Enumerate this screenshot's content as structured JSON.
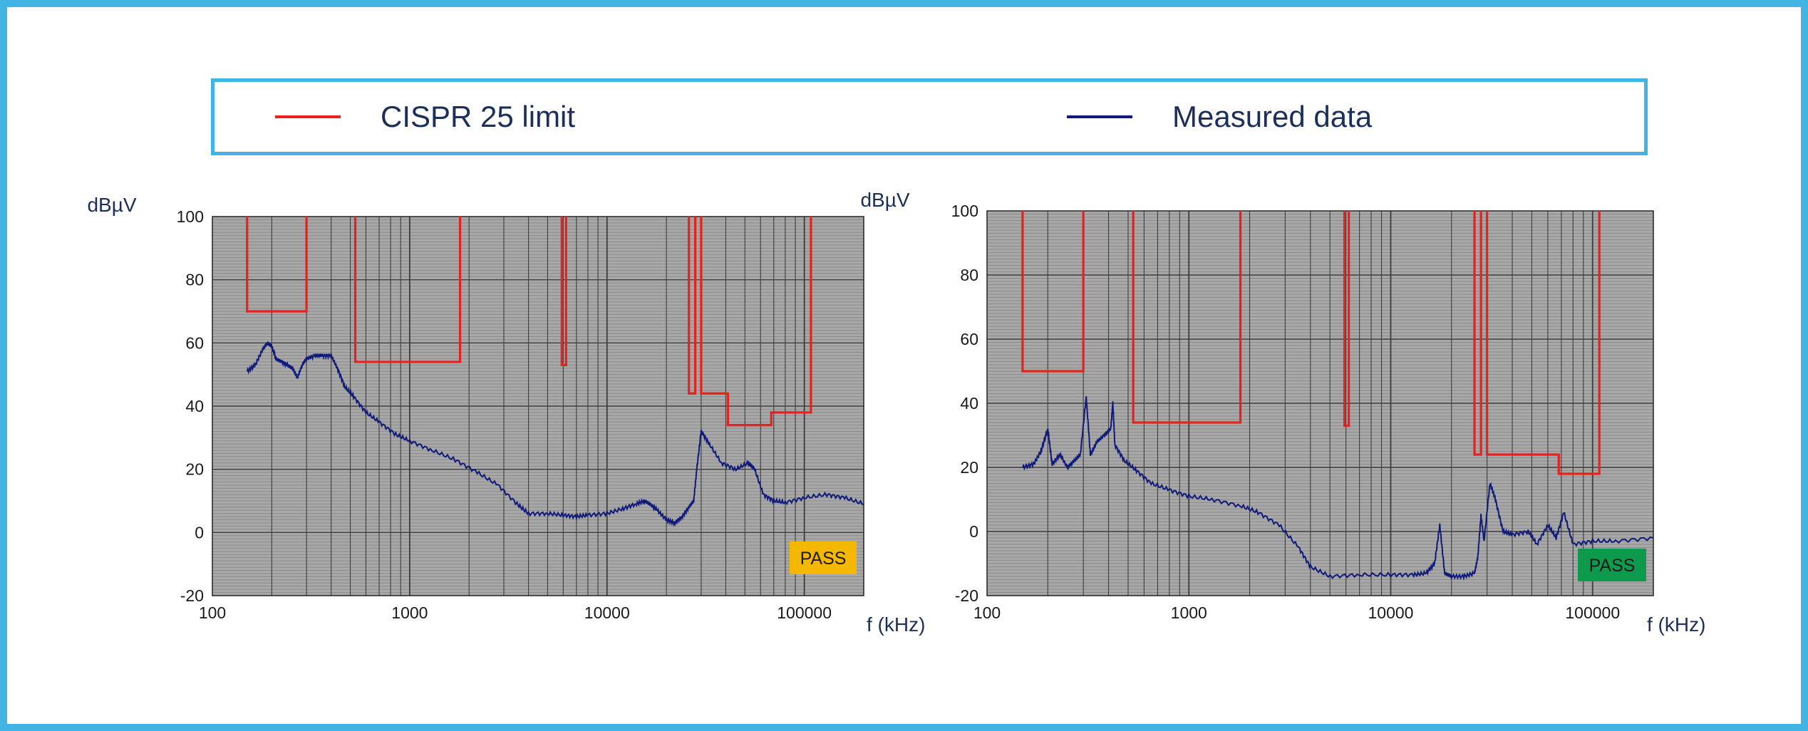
{
  "legend": {
    "items": [
      {
        "label": "CISPR 25 limit",
        "color": "#e8211e"
      },
      {
        "label": "Measured data",
        "color": "#101a7a"
      }
    ]
  },
  "colors": {
    "frame": "#41b4e3",
    "plot_bg": "#a8a8a8",
    "grid_minor": "#8c8c8c",
    "grid_major": "#3c3c3c",
    "limit": "#e8211e",
    "measured": "#101a7a",
    "text": "#1c2f5a"
  },
  "chart_data": [
    {
      "type": "line",
      "title": "",
      "xlabel": "f (kHz)",
      "ylabel": "dBµV",
      "xscale": "log",
      "xlim": [
        100,
        200000
      ],
      "ylim": [
        -20,
        100
      ],
      "xticks": [
        "100",
        "1000",
        "10000",
        "100000"
      ],
      "yticks": [
        "-20",
        "0",
        "20",
        "40",
        "60",
        "80",
        "100"
      ],
      "grid": true,
      "badge": {
        "text": "PASS",
        "color": "#f5b800",
        "text_color": "#3a3000"
      },
      "limit": {
        "name": "CISPR 25 limit",
        "segments": [
          {
            "f1": 150,
            "f2": 300,
            "level": 70
          },
          {
            "f1": 530,
            "f2": 1800,
            "level": 54
          },
          {
            "f1": 5900,
            "f2": 6200,
            "level": 53
          },
          {
            "f1": 26000,
            "f2": 28000,
            "level": 44
          },
          {
            "f1": 30000,
            "f2": 41000,
            "level": 44
          },
          {
            "f1": 41000,
            "f2": 68000,
            "level": 34
          },
          {
            "f1": 68000,
            "f2": 108000,
            "level": 38
          }
        ]
      },
      "measured": {
        "name": "Measured data",
        "points": [
          [
            150,
            51
          ],
          [
            165,
            53
          ],
          [
            180,
            58
          ],
          [
            190,
            60
          ],
          [
            200,
            59
          ],
          [
            210,
            55
          ],
          [
            225,
            54
          ],
          [
            240,
            53
          ],
          [
            255,
            52
          ],
          [
            270,
            49
          ],
          [
            285,
            53
          ],
          [
            300,
            55
          ],
          [
            330,
            56
          ],
          [
            360,
            56
          ],
          [
            400,
            56
          ],
          [
            430,
            52
          ],
          [
            470,
            46
          ],
          [
            520,
            43
          ],
          [
            600,
            38
          ],
          [
            700,
            35
          ],
          [
            850,
            31
          ],
          [
            1000,
            29
          ],
          [
            1300,
            26
          ],
          [
            1700,
            23
          ],
          [
            2200,
            19
          ],
          [
            2800,
            15
          ],
          [
            3500,
            9
          ],
          [
            4000,
            6
          ],
          [
            5000,
            6
          ],
          [
            6000,
            5.5
          ],
          [
            7000,
            5
          ],
          [
            8000,
            5.5
          ],
          [
            10000,
            6
          ],
          [
            12000,
            7.5
          ],
          [
            14000,
            9
          ],
          [
            15500,
            10
          ],
          [
            16500,
            9
          ],
          [
            18000,
            7
          ],
          [
            20000,
            4
          ],
          [
            22000,
            3
          ],
          [
            24000,
            5
          ],
          [
            26000,
            8
          ],
          [
            27500,
            10
          ],
          [
            28500,
            20
          ],
          [
            30000,
            32
          ],
          [
            33000,
            28
          ],
          [
            38000,
            22
          ],
          [
            45000,
            20
          ],
          [
            52000,
            22
          ],
          [
            56000,
            20
          ],
          [
            62000,
            12
          ],
          [
            70000,
            10
          ],
          [
            80000,
            9.5
          ],
          [
            100000,
            11
          ],
          [
            130000,
            12
          ],
          [
            160000,
            11
          ],
          [
            200000,
            9
          ]
        ]
      }
    },
    {
      "type": "line",
      "title": "",
      "xlabel": "f (kHz)",
      "ylabel": "dBµV",
      "xscale": "log",
      "xlim": [
        100,
        200000
      ],
      "ylim": [
        -20,
        100
      ],
      "xticks": [
        "100",
        "1000",
        "10000",
        "100000"
      ],
      "yticks": [
        "-20",
        "0",
        "20",
        "40",
        "60",
        "80",
        "100"
      ],
      "grid": true,
      "badge": {
        "text": "PASS",
        "color": "#0e9a4d",
        "text_color": "#0a2a14"
      },
      "limit": {
        "name": "CISPR 25 limit",
        "segments": [
          {
            "f1": 150,
            "f2": 300,
            "level": 50
          },
          {
            "f1": 530,
            "f2": 1800,
            "level": 34
          },
          {
            "f1": 5900,
            "f2": 6200,
            "level": 33
          },
          {
            "f1": 26000,
            "f2": 28000,
            "level": 24
          },
          {
            "f1": 30000,
            "f2": 68000,
            "level": 24
          },
          {
            "f1": 68000,
            "f2": 108000,
            "level": 18
          }
        ]
      },
      "measured": {
        "name": "Measured data",
        "points": [
          [
            150,
            20
          ],
          [
            170,
            21
          ],
          [
            185,
            25
          ],
          [
            200,
            32
          ],
          [
            210,
            21
          ],
          [
            230,
            24
          ],
          [
            250,
            20
          ],
          [
            270,
            22
          ],
          [
            290,
            24
          ],
          [
            310,
            42
          ],
          [
            325,
            24
          ],
          [
            350,
            28
          ],
          [
            380,
            30
          ],
          [
            410,
            32
          ],
          [
            420,
            40
          ],
          [
            430,
            27
          ],
          [
            480,
            22
          ],
          [
            550,
            19
          ],
          [
            650,
            15
          ],
          [
            800,
            13
          ],
          [
            1000,
            11
          ],
          [
            1300,
            10
          ],
          [
            1800,
            8
          ],
          [
            2200,
            6
          ],
          [
            2800,
            2
          ],
          [
            3500,
            -5
          ],
          [
            4000,
            -11
          ],
          [
            5000,
            -14
          ],
          [
            7000,
            -13.5
          ],
          [
            10000,
            -13.5
          ],
          [
            13000,
            -13.5
          ],
          [
            15000,
            -13
          ],
          [
            16500,
            -10
          ],
          [
            17500,
            2
          ],
          [
            18500,
            -13
          ],
          [
            20000,
            -14
          ],
          [
            23000,
            -14
          ],
          [
            26000,
            -13
          ],
          [
            27000,
            -8
          ],
          [
            28000,
            5
          ],
          [
            29000,
            -3
          ],
          [
            31000,
            15
          ],
          [
            33000,
            10
          ],
          [
            36000,
            0
          ],
          [
            40000,
            -1
          ],
          [
            48000,
            0
          ],
          [
            53000,
            -4
          ],
          [
            60000,
            2
          ],
          [
            66000,
            -2
          ],
          [
            72000,
            6
          ],
          [
            80000,
            -4
          ],
          [
            100000,
            -3
          ],
          [
            130000,
            -3
          ],
          [
            200000,
            -2
          ]
        ]
      }
    }
  ]
}
